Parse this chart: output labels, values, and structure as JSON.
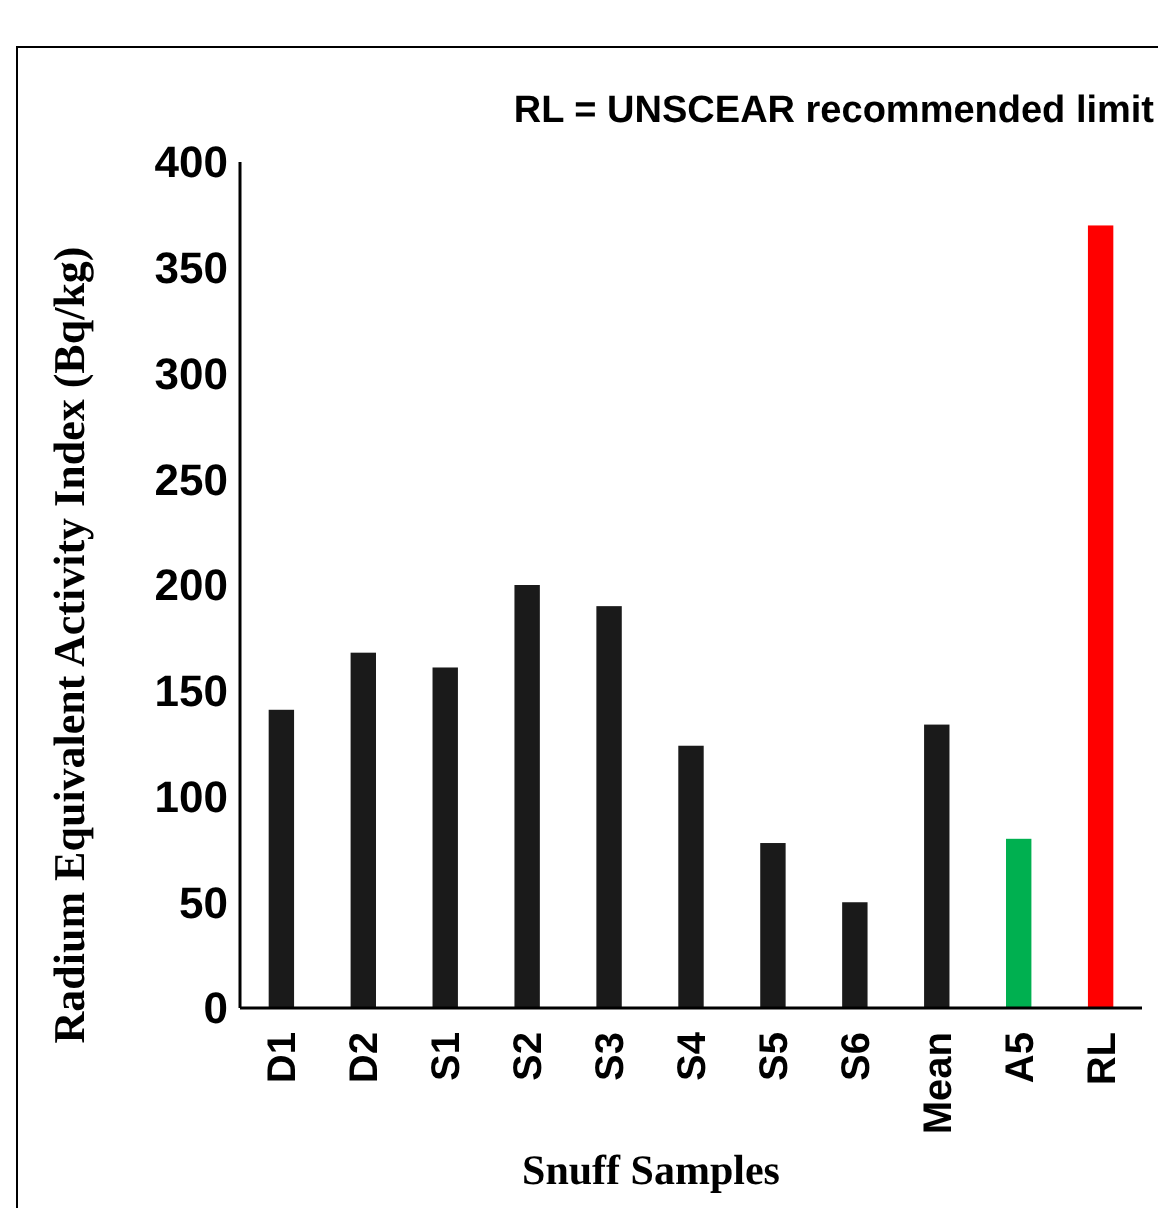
{
  "chart_data": {
    "type": "bar",
    "xlabel": "Snuff  Samples",
    "ylabel": "Radium Equivalent Activity Index (Bq/kg)",
    "annotations": [
      "RL = UNSCEAR recommended limit"
    ],
    "categories": [
      "D1",
      "D2",
      "S1",
      "S2",
      "S3",
      "S4",
      "S5",
      "S6",
      "Mean",
      "A5",
      "RL"
    ],
    "values": [
      141,
      168,
      161,
      200,
      190,
      124,
      78,
      50,
      134,
      80,
      370
    ],
    "colors": [
      "#1a1a1a",
      "#1a1a1a",
      "#1a1a1a",
      "#1a1a1a",
      "#1a1a1a",
      "#1a1a1a",
      "#1a1a1a",
      "#1a1a1a",
      "#1a1a1a",
      "#00b050",
      "#ff0000"
    ],
    "ylim": [
      0,
      400
    ],
    "yticks": [
      0,
      50,
      100,
      150,
      200,
      250,
      300,
      350,
      400
    ],
    "grid": false
  }
}
